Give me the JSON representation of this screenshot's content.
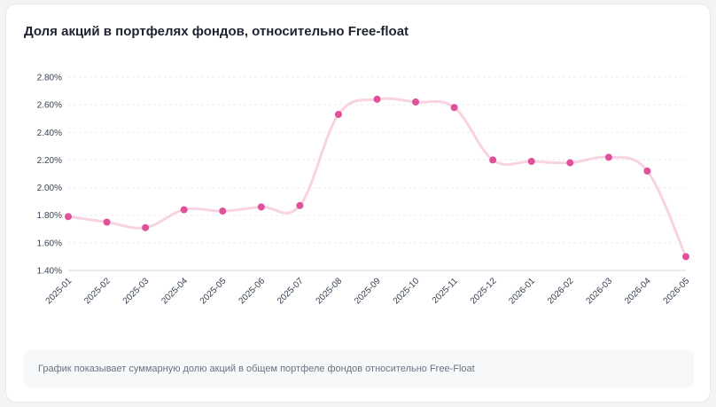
{
  "card": {
    "title": "Доля акций в портфелях фондов, относительно Free-float",
    "note": "График показывает суммарную долю акций в общем портфеле фондов относительно Free-Float"
  },
  "chart_data": {
    "type": "line",
    "title": "Доля акций в портфелях фондов, относительно Free-float",
    "xlabel": "",
    "ylabel": "",
    "categories": [
      "2025-01",
      "2025-02",
      "2025-03",
      "2025-04",
      "2025-05",
      "2025-06",
      "2025-07",
      "2025-08",
      "2025-09",
      "2025-10",
      "2025-11",
      "2025-12",
      "2026-01",
      "2026-02",
      "2026-03",
      "2026-04",
      "2026-05"
    ],
    "series": [
      {
        "values": [
          1.79,
          1.75,
          1.71,
          1.84,
          1.83,
          1.86,
          1.87,
          2.53,
          2.64,
          2.62,
          2.58,
          2.2,
          2.19,
          2.18,
          2.22,
          2.12,
          1.5
        ]
      }
    ],
    "ylim": [
      1.4,
      2.8
    ],
    "yticks": [
      "1.40%",
      "1.60%",
      "1.80%",
      "2.00%",
      "2.20%",
      "2.40%",
      "2.60%",
      "2.80%"
    ],
    "ytick_values": [
      1.4,
      1.6,
      1.8,
      2.0,
      2.2,
      2.4,
      2.6,
      2.8
    ],
    "grid": true,
    "legend": "none",
    "colors": {
      "line": "#f7d3e3",
      "point": "#e0519b",
      "grid": "#eceef2"
    }
  }
}
